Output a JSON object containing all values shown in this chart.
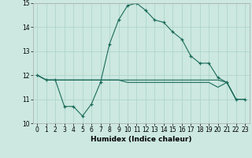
{
  "xlabel": "Humidex (Indice chaleur)",
  "xlim": [
    -0.5,
    23.5
  ],
  "ylim": [
    10.0,
    15.0
  ],
  "yticks": [
    10,
    11,
    12,
    13,
    14,
    15
  ],
  "xticks": [
    0,
    1,
    2,
    3,
    4,
    5,
    6,
    7,
    8,
    9,
    10,
    11,
    12,
    13,
    14,
    15,
    16,
    17,
    18,
    19,
    20,
    21,
    22,
    23
  ],
  "bg_color": "#cce8e0",
  "grid_color": "#b0d5cb",
  "line_color": "#1a6b5a",
  "line1_x": [
    0,
    1,
    2,
    3,
    4,
    5,
    6,
    7,
    8,
    9,
    10,
    11,
    12,
    13,
    14,
    15,
    16,
    17,
    18,
    19,
    20,
    21,
    22,
    23
  ],
  "line1_y": [
    12.0,
    11.8,
    11.8,
    10.7,
    10.7,
    10.3,
    10.8,
    11.7,
    13.3,
    14.3,
    14.9,
    15.0,
    14.7,
    14.3,
    14.2,
    13.8,
    13.5,
    12.8,
    12.5,
    12.5,
    11.9,
    11.7,
    11.0,
    11.0
  ],
  "line2_x": [
    0,
    1,
    2,
    3,
    4,
    5,
    6,
    7,
    8,
    9,
    10,
    11,
    12,
    13,
    14,
    15,
    16,
    17,
    18,
    19,
    20,
    21,
    22,
    23
  ],
  "line2_y": [
    12.0,
    11.8,
    11.8,
    11.8,
    11.8,
    11.8,
    11.8,
    11.8,
    11.8,
    11.8,
    11.8,
    11.8,
    11.8,
    11.8,
    11.8,
    11.8,
    11.8,
    11.8,
    11.8,
    11.8,
    11.8,
    11.7,
    11.0,
    11.0
  ],
  "line3_x": [
    0,
    1,
    2,
    3,
    4,
    5,
    6,
    7,
    8,
    9,
    10,
    11,
    12,
    13,
    14,
    15,
    16,
    17,
    18,
    19,
    20,
    21,
    22,
    23
  ],
  "line3_y": [
    12.0,
    11.8,
    11.8,
    11.8,
    11.8,
    11.8,
    11.8,
    11.8,
    11.8,
    11.8,
    11.7,
    11.7,
    11.7,
    11.7,
    11.7,
    11.7,
    11.7,
    11.7,
    11.7,
    11.7,
    11.5,
    11.7,
    11.0,
    11.0
  ],
  "tick_fontsize": 5.5,
  "xlabel_fontsize": 6.5
}
